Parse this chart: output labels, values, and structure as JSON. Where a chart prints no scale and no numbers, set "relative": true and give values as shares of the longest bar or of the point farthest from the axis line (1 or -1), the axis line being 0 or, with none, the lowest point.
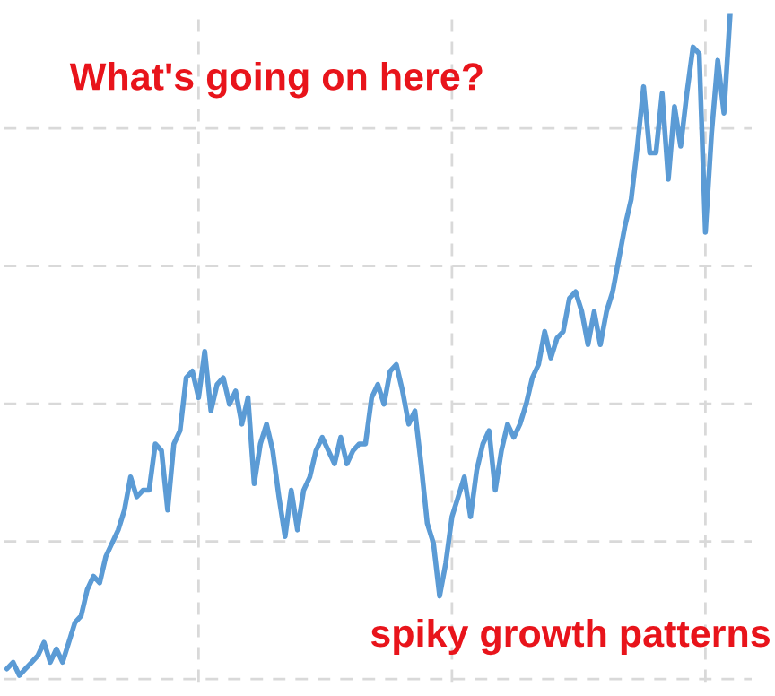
{
  "chart_data": {
    "type": "line",
    "relative": true,
    "grid": true,
    "line_style": "solid",
    "annotations": [
      "What's going on here?",
      "spiky growth patterns"
    ],
    "categories": [
      null,
      null,
      null,
      null,
      null,
      null,
      null,
      null,
      null,
      null,
      null,
      null,
      null,
      null,
      null,
      null,
      null,
      null,
      null,
      null,
      null,
      null,
      null,
      null,
      null,
      null,
      null,
      null,
      null,
      null,
      null,
      null,
      null,
      null,
      null,
      null,
      null,
      null,
      null,
      null,
      null,
      null,
      null,
      null,
      null,
      null,
      null,
      null,
      null,
      null,
      null,
      null,
      null,
      null,
      null,
      null,
      null,
      null,
      null,
      null,
      null,
      null,
      null,
      null,
      null,
      null,
      null,
      null,
      null,
      null,
      null,
      null,
      null,
      null,
      null,
      null,
      null,
      null,
      null,
      null,
      null,
      null,
      null,
      null,
      null,
      null,
      null,
      null,
      null,
      null,
      null,
      null,
      null,
      null,
      null,
      null,
      null,
      null,
      null,
      null,
      null,
      null,
      null,
      null,
      null,
      null,
      null,
      null,
      null,
      null,
      null,
      null,
      null,
      null,
      null,
      null,
      null,
      null
    ],
    "series": [
      {
        "color": "#5b9bd5",
        "values": [
          0.01,
          0.02,
          0,
          0.01,
          0.02,
          0.03,
          0.05,
          0.02,
          0.04,
          0.02,
          0.05,
          0.08,
          0.09,
          0.13,
          0.15,
          0.14,
          0.18,
          0.2,
          0.22,
          0.25,
          0.3,
          0.27,
          0.28,
          0.28,
          0.35,
          0.34,
          0.25,
          0.35,
          0.37,
          0.45,
          0.46,
          0.42,
          0.49,
          0.4,
          0.44,
          0.45,
          0.41,
          0.43,
          0.38,
          0.42,
          0.29,
          0.35,
          0.38,
          0.34,
          0.27,
          0.21,
          0.28,
          0.22,
          0.28,
          0.3,
          0.34,
          0.36,
          0.34,
          0.32,
          0.36,
          0.32,
          0.34,
          0.35,
          0.35,
          0.42,
          0.44,
          0.41,
          0.46,
          0.47,
          0.43,
          0.38,
          0.4,
          0.32,
          0.23,
          0.2,
          0.12,
          0.17,
          0.24,
          0.27,
          0.3,
          0.24,
          0.31,
          0.35,
          0.37,
          0.28,
          0.34,
          0.38,
          0.36,
          0.38,
          0.41,
          0.45,
          0.47,
          0.52,
          0.48,
          0.51,
          0.52,
          0.57,
          0.58,
          0.55,
          0.5,
          0.55,
          0.5,
          0.55,
          0.58,
          0.63,
          0.68,
          0.72,
          0.8,
          0.89,
          0.79,
          0.79,
          0.88,
          0.75,
          0.86,
          0.8,
          0.88,
          0.95,
          0.94,
          0.67,
          0.82,
          0.93,
          0.85,
          1
        ]
      }
    ]
  }
}
